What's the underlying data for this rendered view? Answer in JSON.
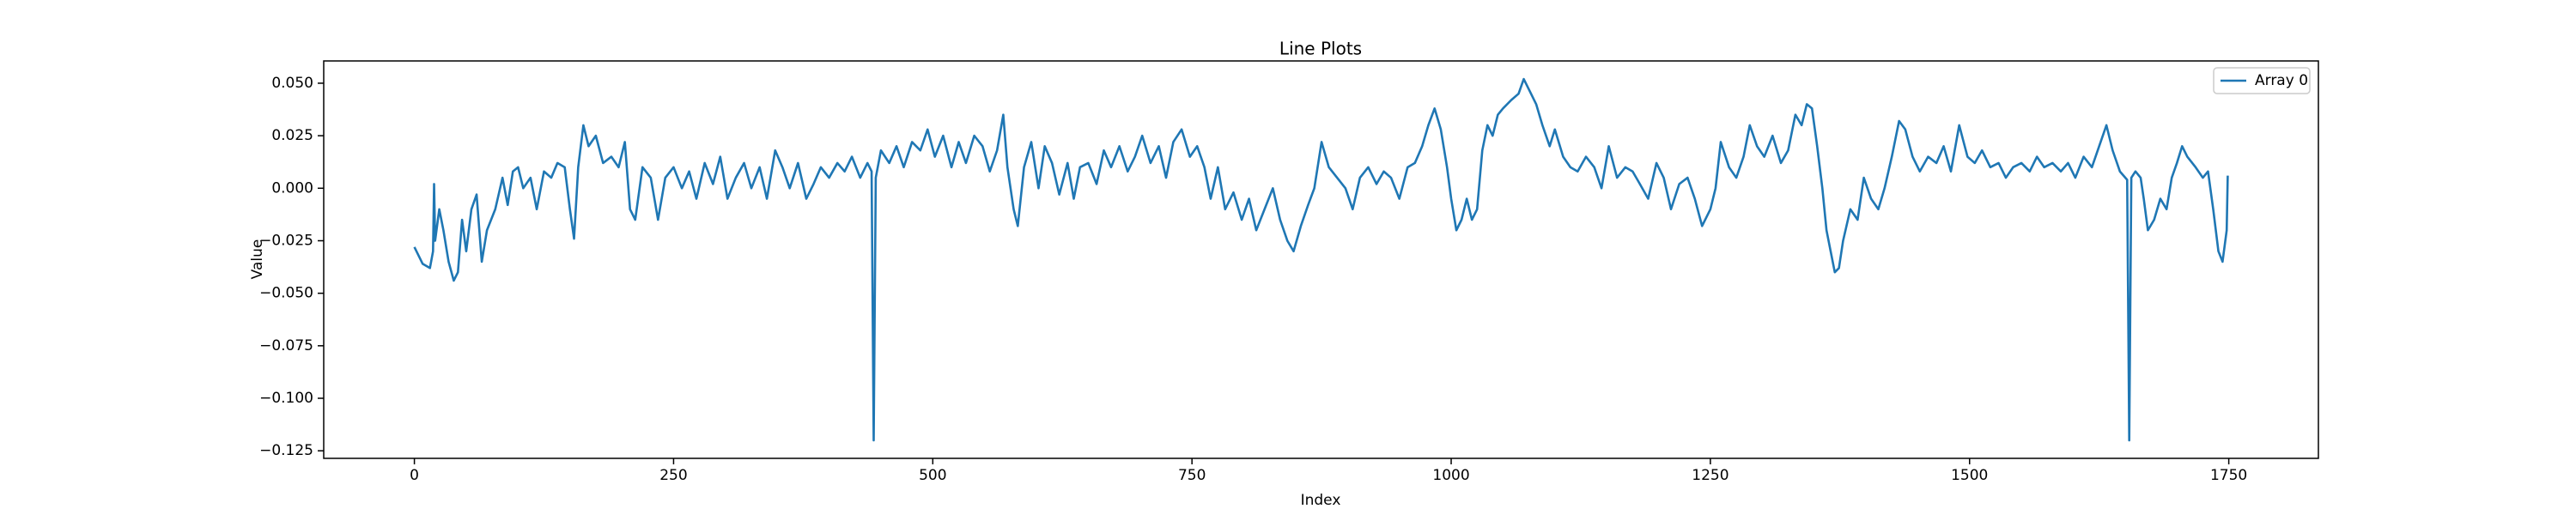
{
  "chart_data": {
    "type": "line",
    "title": "Line Plots",
    "xlabel": "Index",
    "ylabel": "Value",
    "legend": "upper right",
    "grid": false,
    "xlim": [
      -87.45,
      1836.45
    ],
    "xticks": [
      0,
      250,
      500,
      750,
      1000,
      1250,
      1500,
      1750
    ],
    "ylim": [
      -0.1286,
      0.0606
    ],
    "yticks": [
      {
        "value": -0.125,
        "label": "−0.125"
      },
      {
        "value": -0.1,
        "label": "−0.100"
      },
      {
        "value": -0.075,
        "label": "−0.075"
      },
      {
        "value": -0.05,
        "label": "−0.050"
      },
      {
        "value": -0.025,
        "label": "−0.025"
      },
      {
        "value": 0,
        "label": "0.000"
      },
      {
        "value": 0.025,
        "label": "0.025"
      },
      {
        "value": 0.05,
        "label": "0.050"
      }
    ],
    "x": [
      0,
      8,
      15,
      18,
      19,
      20,
      24,
      28,
      33,
      38,
      42,
      46,
      50,
      55,
      60,
      65,
      70,
      78,
      85,
      90,
      95,
      100,
      105,
      112,
      118,
      125,
      132,
      138,
      145,
      150,
      154,
      158,
      163,
      168,
      175,
      182,
      190,
      197,
      203,
      208,
      213,
      220,
      228,
      235,
      242,
      250,
      258,
      265,
      272,
      280,
      288,
      295,
      302,
      310,
      318,
      325,
      333,
      340,
      348,
      355,
      362,
      370,
      378,
      385,
      392,
      400,
      408,
      415,
      422,
      430,
      437,
      441,
      443,
      445,
      450,
      458,
      465,
      472,
      480,
      488,
      495,
      502,
      510,
      518,
      525,
      532,
      540,
      548,
      555,
      562,
      568,
      572,
      578,
      582,
      588,
      595,
      602,
      608,
      615,
      622,
      630,
      636,
      642,
      650,
      658,
      665,
      672,
      680,
      688,
      695,
      702,
      710,
      718,
      725,
      732,
      740,
      748,
      755,
      762,
      768,
      775,
      782,
      790,
      798,
      805,
      812,
      820,
      828,
      835,
      842,
      848,
      855,
      862,
      868,
      875,
      882,
      890,
      898,
      905,
      912,
      920,
      928,
      935,
      942,
      950,
      958,
      965,
      972,
      978,
      984,
      990,
      996,
      1000,
      1005,
      1010,
      1015,
      1020,
      1025,
      1030,
      1035,
      1040,
      1045,
      1050,
      1058,
      1065,
      1070,
      1076,
      1082,
      1088,
      1095,
      1100,
      1108,
      1115,
      1122,
      1130,
      1138,
      1145,
      1152,
      1160,
      1168,
      1175,
      1182,
      1190,
      1198,
      1205,
      1212,
      1220,
      1228,
      1235,
      1242,
      1250,
      1255,
      1260,
      1268,
      1275,
      1282,
      1288,
      1295,
      1302,
      1310,
      1318,
      1325,
      1332,
      1338,
      1343,
      1348,
      1353,
      1358,
      1362,
      1366,
      1370,
      1374,
      1378,
      1385,
      1392,
      1398,
      1405,
      1412,
      1418,
      1425,
      1432,
      1438,
      1445,
      1452,
      1460,
      1468,
      1475,
      1482,
      1490,
      1498,
      1505,
      1512,
      1520,
      1528,
      1535,
      1542,
      1550,
      1558,
      1565,
      1572,
      1580,
      1588,
      1595,
      1602,
      1610,
      1618,
      1625,
      1632,
      1638,
      1645,
      1652,
      1654,
      1656,
      1660,
      1665,
      1668,
      1672,
      1678,
      1684,
      1690,
      1695,
      1700,
      1705,
      1710,
      1718,
      1725,
      1730,
      1735,
      1740,
      1744,
      1748,
      1749
    ],
    "series": [
      {
        "name": "Array 0",
        "color": "#1f77b4",
        "values": [
          -0.028,
          -0.036,
          -0.038,
          -0.03,
          0.002,
          -0.025,
          -0.01,
          -0.02,
          -0.035,
          -0.044,
          -0.04,
          -0.015,
          -0.03,
          -0.01,
          -0.003,
          -0.035,
          -0.02,
          -0.01,
          0.005,
          -0.008,
          0.008,
          0.01,
          0.0,
          0.005,
          -0.01,
          0.008,
          0.005,
          0.012,
          0.01,
          -0.01,
          -0.024,
          0.01,
          0.03,
          0.02,
          0.025,
          0.012,
          0.015,
          0.01,
          0.022,
          -0.01,
          -0.015,
          0.01,
          0.005,
          -0.015,
          0.005,
          0.01,
          0.0,
          0.008,
          -0.005,
          0.012,
          0.002,
          0.015,
          -0.005,
          0.005,
          0.012,
          0.0,
          0.01,
          -0.005,
          0.018,
          0.01,
          0.0,
          0.012,
          -0.005,
          0.002,
          0.01,
          0.005,
          0.012,
          0.008,
          0.015,
          0.005,
          0.012,
          0.008,
          -0.12,
          0.005,
          0.018,
          0.012,
          0.02,
          0.01,
          0.022,
          0.018,
          0.028,
          0.015,
          0.025,
          0.01,
          0.022,
          0.012,
          0.025,
          0.02,
          0.008,
          0.018,
          0.035,
          0.01,
          -0.01,
          -0.018,
          0.01,
          0.022,
          0.0,
          0.02,
          0.012,
          -0.003,
          0.012,
          -0.005,
          0.01,
          0.012,
          0.002,
          0.018,
          0.01,
          0.02,
          0.008,
          0.015,
          0.025,
          0.012,
          0.02,
          0.005,
          0.022,
          0.028,
          0.015,
          0.02,
          0.01,
          -0.005,
          0.01,
          -0.01,
          -0.002,
          -0.015,
          -0.005,
          -0.02,
          -0.01,
          0.0,
          -0.015,
          -0.025,
          -0.03,
          -0.018,
          -0.008,
          0.0,
          0.022,
          0.01,
          0.005,
          0.0,
          -0.01,
          0.005,
          0.01,
          0.002,
          0.008,
          0.005,
          -0.005,
          0.01,
          0.012,
          0.02,
          0.03,
          0.038,
          0.028,
          0.01,
          -0.005,
          -0.02,
          -0.015,
          -0.005,
          -0.015,
          -0.01,
          0.018,
          0.03,
          0.025,
          0.035,
          0.038,
          0.042,
          0.045,
          0.052,
          0.046,
          0.04,
          0.03,
          0.02,
          0.028,
          0.015,
          0.01,
          0.008,
          0.015,
          0.01,
          0.0,
          0.02,
          0.005,
          0.01,
          0.008,
          0.002,
          -0.005,
          0.012,
          0.005,
          -0.01,
          0.002,
          0.005,
          -0.005,
          -0.018,
          -0.01,
          0.0,
          0.022,
          0.01,
          0.005,
          0.015,
          0.03,
          0.02,
          0.015,
          0.025,
          0.012,
          0.018,
          0.035,
          0.03,
          0.04,
          0.038,
          0.02,
          0.0,
          -0.02,
          -0.03,
          -0.04,
          -0.038,
          -0.025,
          -0.01,
          -0.015,
          0.005,
          -0.005,
          -0.01,
          0.0,
          0.015,
          0.032,
          0.028,
          0.015,
          0.008,
          0.015,
          0.012,
          0.02,
          0.008,
          0.03,
          0.015,
          0.012,
          0.018,
          0.01,
          0.012,
          0.005,
          0.01,
          0.012,
          0.008,
          0.015,
          0.01,
          0.012,
          0.008,
          0.012,
          0.005,
          0.015,
          0.01,
          0.02,
          0.03,
          0.018,
          0.008,
          0.004,
          -0.12,
          0.005,
          0.008,
          0.005,
          -0.005,
          -0.02,
          -0.015,
          -0.005,
          -0.01,
          0.005,
          0.012,
          0.02,
          0.015,
          0.01,
          0.005,
          0.008,
          -0.01,
          -0.03,
          -0.035,
          -0.02,
          0.006
        ]
      }
    ]
  }
}
